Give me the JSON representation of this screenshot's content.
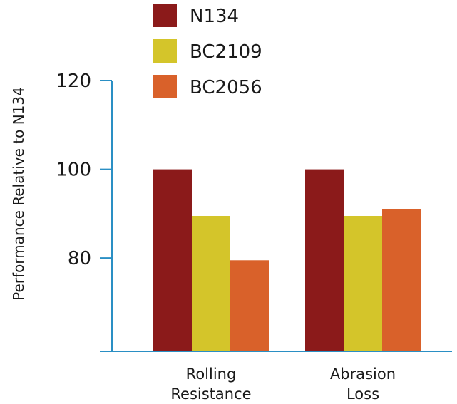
{
  "chart_data": {
    "type": "bar",
    "title": "",
    "xlabel": "",
    "ylabel": "Performance Relative to N134",
    "ylim": [
      59,
      120
    ],
    "yticks": [
      80,
      100,
      120
    ],
    "grid": false,
    "legend_position": "top",
    "categories": [
      [
        "Rolling",
        "Resistance"
      ],
      [
        "Abrasion",
        "Loss"
      ]
    ],
    "series": [
      {
        "name": "N134",
        "color": "#8b1a1a",
        "values": [
          100,
          100
        ]
      },
      {
        "name": "BC2109",
        "color": "#d4c52a",
        "values": [
          89.5,
          89.5
        ]
      },
      {
        "name": "BC2056",
        "color": "#d9612a",
        "values": [
          79.5,
          91
        ]
      }
    ],
    "axis_color": "#2a8fc4"
  }
}
